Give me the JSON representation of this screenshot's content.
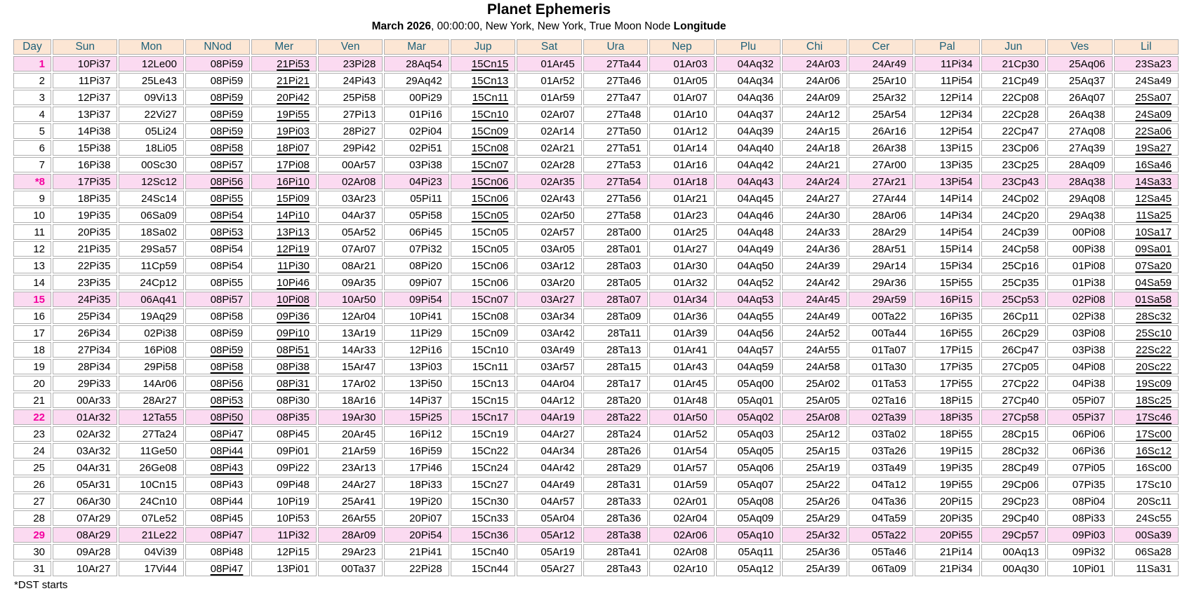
{
  "title": "Planet Ephemeris",
  "subtitle": {
    "date": "March 2026",
    "middle": ", 00:00:00, New York, New York, True Moon Node ",
    "suffix": "Longitude"
  },
  "footnote": "*DST starts",
  "colors": {
    "header_bg": "#FCE6D4",
    "header_text": "#1E6078",
    "highlight_row_bg": "#FBDAF1",
    "highlight_day_text": "#F4009F",
    "grid": "#B0B0B0"
  },
  "table": {
    "columns": [
      "Day",
      "Sun",
      "Mon",
      "NNod",
      "Mer",
      "Ven",
      "Mar",
      "Jup",
      "Sat",
      "Ura",
      "Nep",
      "Plu",
      "Chi",
      "Cer",
      "Pal",
      "Jun",
      "Ves",
      "Lil"
    ],
    "highlighted_days": [
      "1",
      "*8",
      "15",
      "22",
      "29"
    ],
    "rows": [
      {
        "day": "1",
        "hl": true,
        "v": [
          "10Pi37",
          "12Le00",
          "08Pi59",
          "21Pi53",
          "23Pi28",
          "28Aq54",
          "15Cn15",
          "01Ar45",
          "27Ta44",
          "01Ar03",
          "04Aq32",
          "24Ar03",
          "24Ar49",
          "11Pi34",
          "21Cp30",
          "25Aq06",
          "23Sa23"
        ],
        "u": [
          3,
          6
        ]
      },
      {
        "day": "2",
        "hl": false,
        "v": [
          "11Pi37",
          "25Le43",
          "08Pi59",
          "21Pi21",
          "24Pi43",
          "29Aq42",
          "15Cn13",
          "01Ar52",
          "27Ta46",
          "01Ar05",
          "04Aq34",
          "24Ar06",
          "25Ar10",
          "11Pi54",
          "21Cp49",
          "25Aq37",
          "24Sa49"
        ],
        "u": [
          3,
          6
        ]
      },
      {
        "day": "3",
        "hl": false,
        "v": [
          "12Pi37",
          "09Vi13",
          "08Pi59",
          "20Pi42",
          "25Pi58",
          "00Pi29",
          "15Cn11",
          "01Ar59",
          "27Ta47",
          "01Ar07",
          "04Aq36",
          "24Ar09",
          "25Ar32",
          "12Pi14",
          "22Cp08",
          "26Aq07",
          "25Sa07"
        ],
        "u": [
          2,
          3,
          6,
          16
        ]
      },
      {
        "day": "4",
        "hl": false,
        "v": [
          "13Pi37",
          "22Vi27",
          "08Pi59",
          "19Pi55",
          "27Pi13",
          "01Pi16",
          "15Cn10",
          "02Ar07",
          "27Ta48",
          "01Ar10",
          "04Aq37",
          "24Ar12",
          "25Ar54",
          "12Pi34",
          "22Cp28",
          "26Aq38",
          "24Sa09"
        ],
        "u": [
          2,
          3,
          6,
          16
        ]
      },
      {
        "day": "5",
        "hl": false,
        "v": [
          "14Pi38",
          "05Li24",
          "08Pi59",
          "19Pi03",
          "28Pi27",
          "02Pi04",
          "15Cn09",
          "02Ar14",
          "27Ta50",
          "01Ar12",
          "04Aq39",
          "24Ar15",
          "26Ar16",
          "12Pi54",
          "22Cp47",
          "27Aq08",
          "22Sa06"
        ],
        "u": [
          2,
          3,
          6,
          16
        ]
      },
      {
        "day": "6",
        "hl": false,
        "v": [
          "15Pi38",
          "18Li05",
          "08Pi58",
          "18Pi07",
          "29Pi42",
          "02Pi51",
          "15Cn08",
          "02Ar21",
          "27Ta51",
          "01Ar14",
          "04Aq40",
          "24Ar18",
          "26Ar38",
          "13Pi15",
          "23Cp06",
          "27Aq39",
          "19Sa27"
        ],
        "u": [
          2,
          3,
          6,
          16
        ]
      },
      {
        "day": "7",
        "hl": false,
        "v": [
          "16Pi38",
          "00Sc30",
          "08Pi57",
          "17Pi08",
          "00Ar57",
          "03Pi38",
          "15Cn07",
          "02Ar28",
          "27Ta53",
          "01Ar16",
          "04Aq42",
          "24Ar21",
          "27Ar00",
          "13Pi35",
          "23Cp25",
          "28Aq09",
          "16Sa46"
        ],
        "u": [
          2,
          3,
          6,
          16
        ]
      },
      {
        "day": "*8",
        "hl": true,
        "v": [
          "17Pi35",
          "12Sc12",
          "08Pi56",
          "16Pi10",
          "02Ar08",
          "04Pi23",
          "15Cn06",
          "02Ar35",
          "27Ta54",
          "01Ar18",
          "04Aq43",
          "24Ar24",
          "27Ar21",
          "13Pi54",
          "23Cp43",
          "28Aq38",
          "14Sa33"
        ],
        "u": [
          2,
          3,
          6,
          16
        ]
      },
      {
        "day": "9",
        "hl": false,
        "v": [
          "18Pi35",
          "24Sc14",
          "08Pi55",
          "15Pi09",
          "03Ar23",
          "05Pi11",
          "15Cn06",
          "02Ar43",
          "27Ta56",
          "01Ar21",
          "04Aq45",
          "24Ar27",
          "27Ar44",
          "14Pi14",
          "24Cp02",
          "29Aq08",
          "12Sa45"
        ],
        "u": [
          2,
          3,
          6,
          16
        ]
      },
      {
        "day": "10",
        "hl": false,
        "v": [
          "19Pi35",
          "06Sa09",
          "08Pi54",
          "14Pi10",
          "04Ar37",
          "05Pi58",
          "15Cn05",
          "02Ar50",
          "27Ta58",
          "01Ar23",
          "04Aq46",
          "24Ar30",
          "28Ar06",
          "14Pi34",
          "24Cp20",
          "29Aq38",
          "11Sa25"
        ],
        "u": [
          2,
          3,
          6,
          16
        ]
      },
      {
        "day": "11",
        "hl": false,
        "v": [
          "20Pi35",
          "18Sa02",
          "08Pi53",
          "13Pi13",
          "05Ar52",
          "06Pi45",
          "15Cn05",
          "02Ar57",
          "28Ta00",
          "01Ar25",
          "04Aq48",
          "24Ar33",
          "28Ar29",
          "14Pi54",
          "24Cp39",
          "00Pi08",
          "10Sa17"
        ],
        "u": [
          2,
          3,
          16
        ]
      },
      {
        "day": "12",
        "hl": false,
        "v": [
          "21Pi35",
          "29Sa57",
          "08Pi54",
          "12Pi19",
          "07Ar07",
          "07Pi32",
          "15Cn05",
          "03Ar05",
          "28Ta01",
          "01Ar27",
          "04Aq49",
          "24Ar36",
          "28Ar51",
          "15Pi14",
          "24Cp58",
          "00Pi38",
          "09Sa01"
        ],
        "u": [
          3,
          16
        ]
      },
      {
        "day": "13",
        "hl": false,
        "v": [
          "22Pi35",
          "11Cp59",
          "08Pi54",
          "11Pi30",
          "08Ar21",
          "08Pi20",
          "15Cn06",
          "03Ar12",
          "28Ta03",
          "01Ar30",
          "04Aq50",
          "24Ar39",
          "29Ar14",
          "15Pi34",
          "25Cp16",
          "01Pi08",
          "07Sa20"
        ],
        "u": [
          3,
          16
        ]
      },
      {
        "day": "14",
        "hl": false,
        "v": [
          "23Pi35",
          "24Cp12",
          "08Pi55",
          "10Pi46",
          "09Ar35",
          "09Pi07",
          "15Cn06",
          "03Ar20",
          "28Ta05",
          "01Ar32",
          "04Aq52",
          "24Ar42",
          "29Ar36",
          "15Pi55",
          "25Cp35",
          "01Pi38",
          "04Sa59"
        ],
        "u": [
          3,
          16
        ]
      },
      {
        "day": "15",
        "hl": true,
        "v": [
          "24Pi35",
          "06Aq41",
          "08Pi57",
          "10Pi08",
          "10Ar50",
          "09Pi54",
          "15Cn07",
          "03Ar27",
          "28Ta07",
          "01Ar34",
          "04Aq53",
          "24Ar45",
          "29Ar59",
          "16Pi15",
          "25Cp53",
          "02Pi08",
          "01Sa58"
        ],
        "u": [
          3,
          16
        ]
      },
      {
        "day": "16",
        "hl": false,
        "v": [
          "25Pi34",
          "19Aq29",
          "08Pi58",
          "09Pi36",
          "12Ar04",
          "10Pi41",
          "15Cn08",
          "03Ar34",
          "28Ta09",
          "01Ar36",
          "04Aq55",
          "24Ar49",
          "00Ta22",
          "16Pi35",
          "26Cp11",
          "02Pi38",
          "28Sc32"
        ],
        "u": [
          3,
          16
        ]
      },
      {
        "day": "17",
        "hl": false,
        "v": [
          "26Pi34",
          "02Pi38",
          "08Pi59",
          "09Pi10",
          "13Ar19",
          "11Pi29",
          "15Cn09",
          "03Ar42",
          "28Ta11",
          "01Ar39",
          "04Aq56",
          "24Ar52",
          "00Ta44",
          "16Pi55",
          "26Cp29",
          "03Pi08",
          "25Sc10"
        ],
        "u": [
          3,
          16
        ]
      },
      {
        "day": "18",
        "hl": false,
        "v": [
          "27Pi34",
          "16Pi08",
          "08Pi59",
          "08Pi51",
          "14Ar33",
          "12Pi16",
          "15Cn10",
          "03Ar49",
          "28Ta13",
          "01Ar41",
          "04Aq57",
          "24Ar55",
          "01Ta07",
          "17Pi15",
          "26Cp47",
          "03Pi38",
          "22Sc22"
        ],
        "u": [
          2,
          3,
          16
        ]
      },
      {
        "day": "19",
        "hl": false,
        "v": [
          "28Pi34",
          "29Pi58",
          "08Pi58",
          "08Pi38",
          "15Ar47",
          "13Pi03",
          "15Cn11",
          "03Ar57",
          "28Ta15",
          "01Ar43",
          "04Aq59",
          "24Ar58",
          "01Ta30",
          "17Pi35",
          "27Cp05",
          "04Pi08",
          "20Sc22"
        ],
        "u": [
          2,
          3,
          16
        ]
      },
      {
        "day": "20",
        "hl": false,
        "v": [
          "29Pi33",
          "14Ar06",
          "08Pi56",
          "08Pi31",
          "17Ar02",
          "13Pi50",
          "15Cn13",
          "04Ar04",
          "28Ta17",
          "01Ar45",
          "05Aq00",
          "25Ar02",
          "01Ta53",
          "17Pi55",
          "27Cp22",
          "04Pi38",
          "19Sc09"
        ],
        "u": [
          2,
          3,
          16
        ]
      },
      {
        "day": "21",
        "hl": false,
        "v": [
          "00Ar33",
          "28Ar27",
          "08Pi53",
          "08Pi30",
          "18Ar16",
          "14Pi37",
          "15Cn15",
          "04Ar12",
          "28Ta20",
          "01Ar48",
          "05Aq01",
          "25Ar05",
          "02Ta16",
          "18Pi15",
          "27Cp40",
          "05Pi07",
          "18Sc25"
        ],
        "u": [
          2,
          16
        ]
      },
      {
        "day": "22",
        "hl": true,
        "v": [
          "01Ar32",
          "12Ta55",
          "08Pi50",
          "08Pi35",
          "19Ar30",
          "15Pi25",
          "15Cn17",
          "04Ar19",
          "28Ta22",
          "01Ar50",
          "05Aq02",
          "25Ar08",
          "02Ta39",
          "18Pi35",
          "27Cp58",
          "05Pi37",
          "17Sc46"
        ],
        "u": [
          2,
          16
        ]
      },
      {
        "day": "23",
        "hl": false,
        "v": [
          "02Ar32",
          "27Ta24",
          "08Pi47",
          "08Pi45",
          "20Ar45",
          "16Pi12",
          "15Cn19",
          "04Ar27",
          "28Ta24",
          "01Ar52",
          "05Aq03",
          "25Ar12",
          "03Ta02",
          "18Pi55",
          "28Cp15",
          "06Pi06",
          "17Sc00"
        ],
        "u": [
          2,
          16
        ]
      },
      {
        "day": "24",
        "hl": false,
        "v": [
          "03Ar32",
          "11Ge50",
          "08Pi44",
          "09Pi01",
          "21Ar59",
          "16Pi59",
          "15Cn22",
          "04Ar34",
          "28Ta26",
          "01Ar54",
          "05Aq05",
          "25Ar15",
          "03Ta26",
          "19Pi15",
          "28Cp32",
          "06Pi36",
          "16Sc12"
        ],
        "u": [
          2,
          16
        ]
      },
      {
        "day": "25",
        "hl": false,
        "v": [
          "04Ar31",
          "26Ge08",
          "08Pi43",
          "09Pi22",
          "23Ar13",
          "17Pi46",
          "15Cn24",
          "04Ar42",
          "28Ta29",
          "01Ar57",
          "05Aq06",
          "25Ar19",
          "03Ta49",
          "19Pi35",
          "28Cp49",
          "07Pi05",
          "16Sc00"
        ],
        "u": [
          2
        ]
      },
      {
        "day": "26",
        "hl": false,
        "v": [
          "05Ar31",
          "10Cn15",
          "08Pi43",
          "09Pi48",
          "24Ar27",
          "18Pi33",
          "15Cn27",
          "04Ar49",
          "28Ta31",
          "01Ar59",
          "05Aq07",
          "25Ar22",
          "04Ta12",
          "19Pi55",
          "29Cp06",
          "07Pi35",
          "17Sc10"
        ],
        "u": []
      },
      {
        "day": "27",
        "hl": false,
        "v": [
          "06Ar30",
          "24Cn10",
          "08Pi44",
          "10Pi19",
          "25Ar41",
          "19Pi20",
          "15Cn30",
          "04Ar57",
          "28Ta33",
          "02Ar01",
          "05Aq08",
          "25Ar26",
          "04Ta36",
          "20Pi15",
          "29Cp23",
          "08Pi04",
          "20Sc11"
        ],
        "u": []
      },
      {
        "day": "28",
        "hl": false,
        "v": [
          "07Ar29",
          "07Le52",
          "08Pi45",
          "10Pi53",
          "26Ar55",
          "20Pi07",
          "15Cn33",
          "05Ar04",
          "28Ta36",
          "02Ar04",
          "05Aq09",
          "25Ar29",
          "04Ta59",
          "20Pi35",
          "29Cp40",
          "08Pi33",
          "24Sc55"
        ],
        "u": []
      },
      {
        "day": "29",
        "hl": true,
        "v": [
          "08Ar29",
          "21Le22",
          "08Pi47",
          "11Pi32",
          "28Ar09",
          "20Pi54",
          "15Cn36",
          "05Ar12",
          "28Ta38",
          "02Ar06",
          "05Aq10",
          "25Ar32",
          "05Ta22",
          "20Pi55",
          "29Cp57",
          "09Pi03",
          "00Sa39"
        ],
        "u": []
      },
      {
        "day": "30",
        "hl": false,
        "v": [
          "09Ar28",
          "04Vi39",
          "08Pi48",
          "12Pi15",
          "29Ar23",
          "21Pi41",
          "15Cn40",
          "05Ar19",
          "28Ta41",
          "02Ar08",
          "05Aq11",
          "25Ar36",
          "05Ta46",
          "21Pi14",
          "00Aq13",
          "09Pi32",
          "06Sa28"
        ],
        "u": []
      },
      {
        "day": "31",
        "hl": false,
        "v": [
          "10Ar27",
          "17Vi44",
          "08Pi47",
          "13Pi01",
          "00Ta37",
          "22Pi28",
          "15Cn44",
          "05Ar27",
          "28Ta43",
          "02Ar10",
          "05Aq12",
          "25Ar39",
          "06Ta09",
          "21Pi34",
          "00Aq30",
          "10Pi01",
          "11Sa31"
        ],
        "u": [
          2
        ]
      }
    ]
  }
}
